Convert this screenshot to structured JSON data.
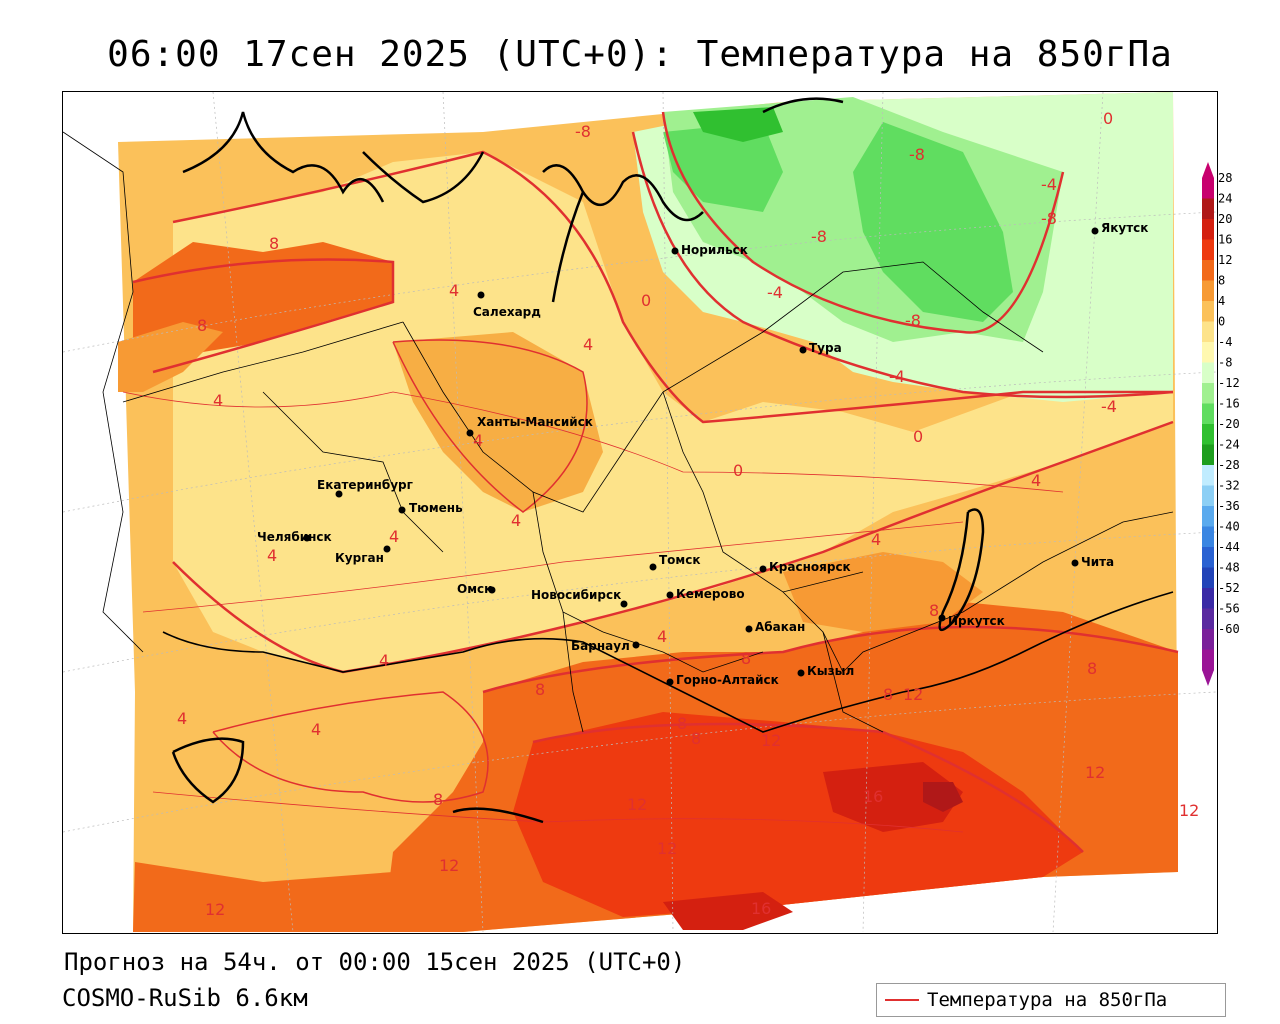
{
  "title": "06:00 17сен 2025 (UTC+0): Температура на 850гПа",
  "footer": {
    "forecast": "Прогноз на 54ч. от 00:00 15сен 2025 (UTC+0)",
    "model": "COSMO-RuSib 6.6км"
  },
  "legend": {
    "label": "Температура на 850гПа",
    "line_color": "#e03030"
  },
  "colorbar": {
    "ticks": [
      "28",
      "24",
      "20",
      "16",
      "12",
      "8",
      "4",
      "0",
      "-4",
      "-8",
      "-12",
      "-16",
      "-20",
      "-24",
      "-28",
      "-32",
      "-36",
      "-40",
      "-44",
      "-48",
      "-52",
      "-56",
      "-60"
    ],
    "colors": [
      "#c8006e",
      "#b01818",
      "#d42010",
      "#ee3a10",
      "#f26a1a",
      "#f79a34",
      "#fbc15a",
      "#fde38a",
      "#fff8b0",
      "#d8ffc8",
      "#a0f090",
      "#60dd60",
      "#30c030",
      "#1e9e1e",
      "#c0ecff",
      "#8ccff5",
      "#5aaaee",
      "#3a86e2",
      "#2a62d2",
      "#2244b8",
      "#3a2aa6",
      "#5a2aa0",
      "#7a209a",
      "#9a1496"
    ]
  },
  "cities": [
    {
      "name": "Норильск"
    },
    {
      "name": "Якутск"
    },
    {
      "name": "Салехард"
    },
    {
      "name": "Тура"
    },
    {
      "name": "Ханты-Мансийск"
    },
    {
      "name": "Екатеринбург"
    },
    {
      "name": "Тюмень"
    },
    {
      "name": "Челябинск"
    },
    {
      "name": "Курган"
    },
    {
      "name": "Омск"
    },
    {
      "name": "Новосибирск"
    },
    {
      "name": "Томск"
    },
    {
      "name": "Красноярск"
    },
    {
      "name": "Кемерово"
    },
    {
      "name": "Абакан"
    },
    {
      "name": "Барнаул"
    },
    {
      "name": "Горно-Алтайск"
    },
    {
      "name": "Кызыл"
    },
    {
      "name": "Иркутск"
    },
    {
      "name": "Чита"
    }
  ],
  "contour_labels": [
    "-8",
    "-8",
    "-8",
    "-8",
    "-8",
    "-4",
    "-4",
    "-4",
    "-4",
    "0",
    "0",
    "0",
    "0",
    "4",
    "4",
    "4",
    "4",
    "4",
    "4",
    "4",
    "4",
    "4",
    "4",
    "4",
    "4",
    "4",
    "8",
    "8",
    "8",
    "8",
    "8",
    "8",
    "8",
    "8",
    "8",
    "8",
    "12",
    "12",
    "12",
    "12",
    "12",
    "12",
    "12",
    "12",
    "16",
    "16"
  ]
}
